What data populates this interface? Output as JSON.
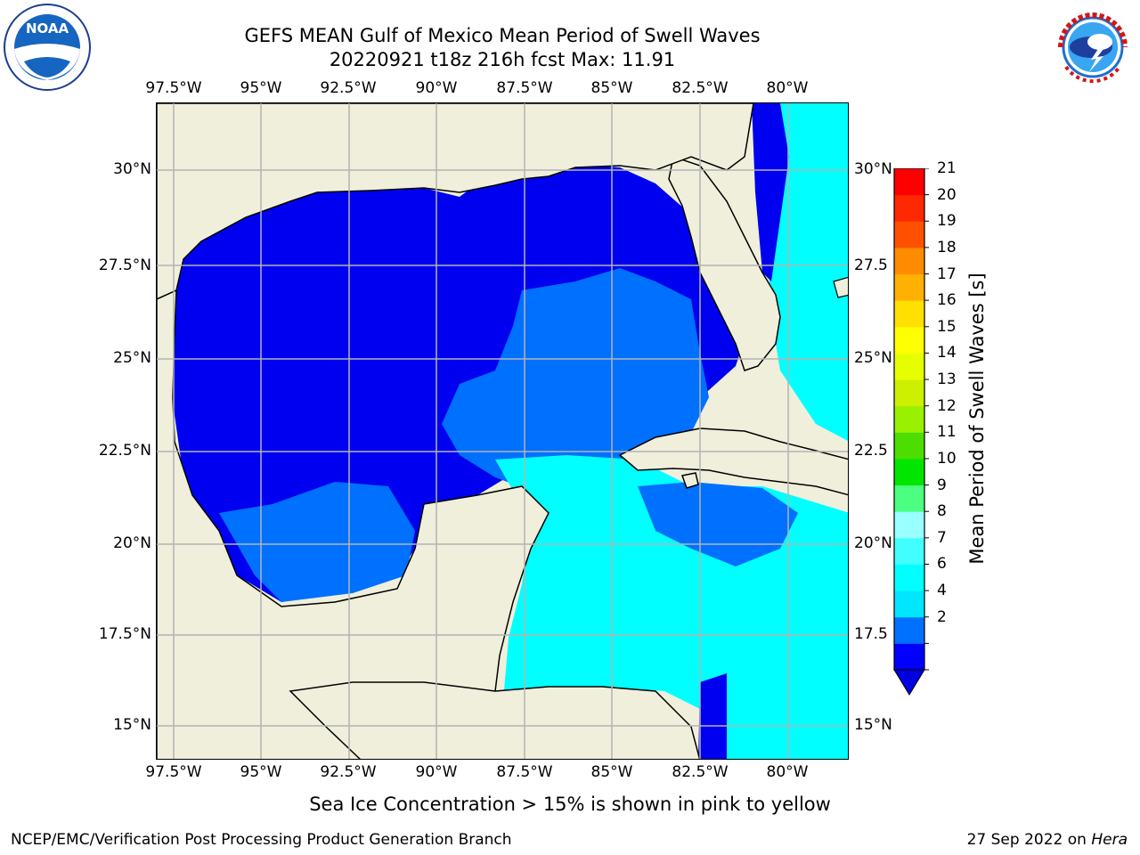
{
  "header": {
    "title_line1": "GEFS MEAN Gulf of Mexico Mean Period of Swell Waves",
    "title_line2": "20220921 t18z 216h fcst   Max: 11.91"
  },
  "logos": {
    "left": "noaa-logo",
    "right": "national-weather-service-logo"
  },
  "map": {
    "lon_ticks": [
      "97.5°W",
      "95°W",
      "92.5°W",
      "90°W",
      "87.5°W",
      "85°W",
      "82.5°W",
      "80°W"
    ],
    "lat_ticks_left": [
      "30°N",
      "27.5°N",
      "25°N",
      "22.5°N",
      "20°N",
      "17.5°N",
      "15°N"
    ],
    "lat_ticks_right": [
      "30°N",
      "27.5",
      "25°N",
      "22.5",
      "20°N",
      "17.5",
      "15°N"
    ],
    "lon_range": [
      -98,
      -78.3
    ],
    "lat_range": [
      14,
      31.6
    ],
    "lon_values": [
      -97.5,
      -95,
      -92.5,
      -90,
      -87.5,
      -85,
      -82.5,
      -80
    ],
    "lat_values": [
      30,
      27.5,
      25,
      22.5,
      20,
      17.5,
      15
    ],
    "land_color": "#efefdc",
    "grid_color": "#b4b4b4"
  },
  "colorbar": {
    "title": "Mean Period of Swell Waves [s]",
    "labels": [
      "21",
      "20",
      "19",
      "18",
      "17",
      "16",
      "15",
      "14",
      "13",
      "12",
      "11",
      "10",
      "9",
      "8",
      "7",
      "6",
      "4",
      "2"
    ],
    "colors_low_to_high": [
      "#0000ff",
      "#0070ff",
      "#00e6ff",
      "#00ffff",
      "#41ffff",
      "#99ffff",
      "#4dff80",
      "#00e600",
      "#4ddd00",
      "#99f000",
      "#ccf000",
      "#e6ff00",
      "#ffff00",
      "#ffe000",
      "#ffb000",
      "#ff8c00",
      "#ff5000",
      "#ff2800",
      "#ff0000"
    ],
    "under_color": "#0000e0"
  },
  "footer": {
    "ice_note": "Sea Ice Concentration > 15% is shown in pink to yellow",
    "left": "NCEP/EMC/Verification Post Processing Product Generation Branch",
    "right_date": "27 Sep 2022 on",
    "right_host": "Hera"
  }
}
